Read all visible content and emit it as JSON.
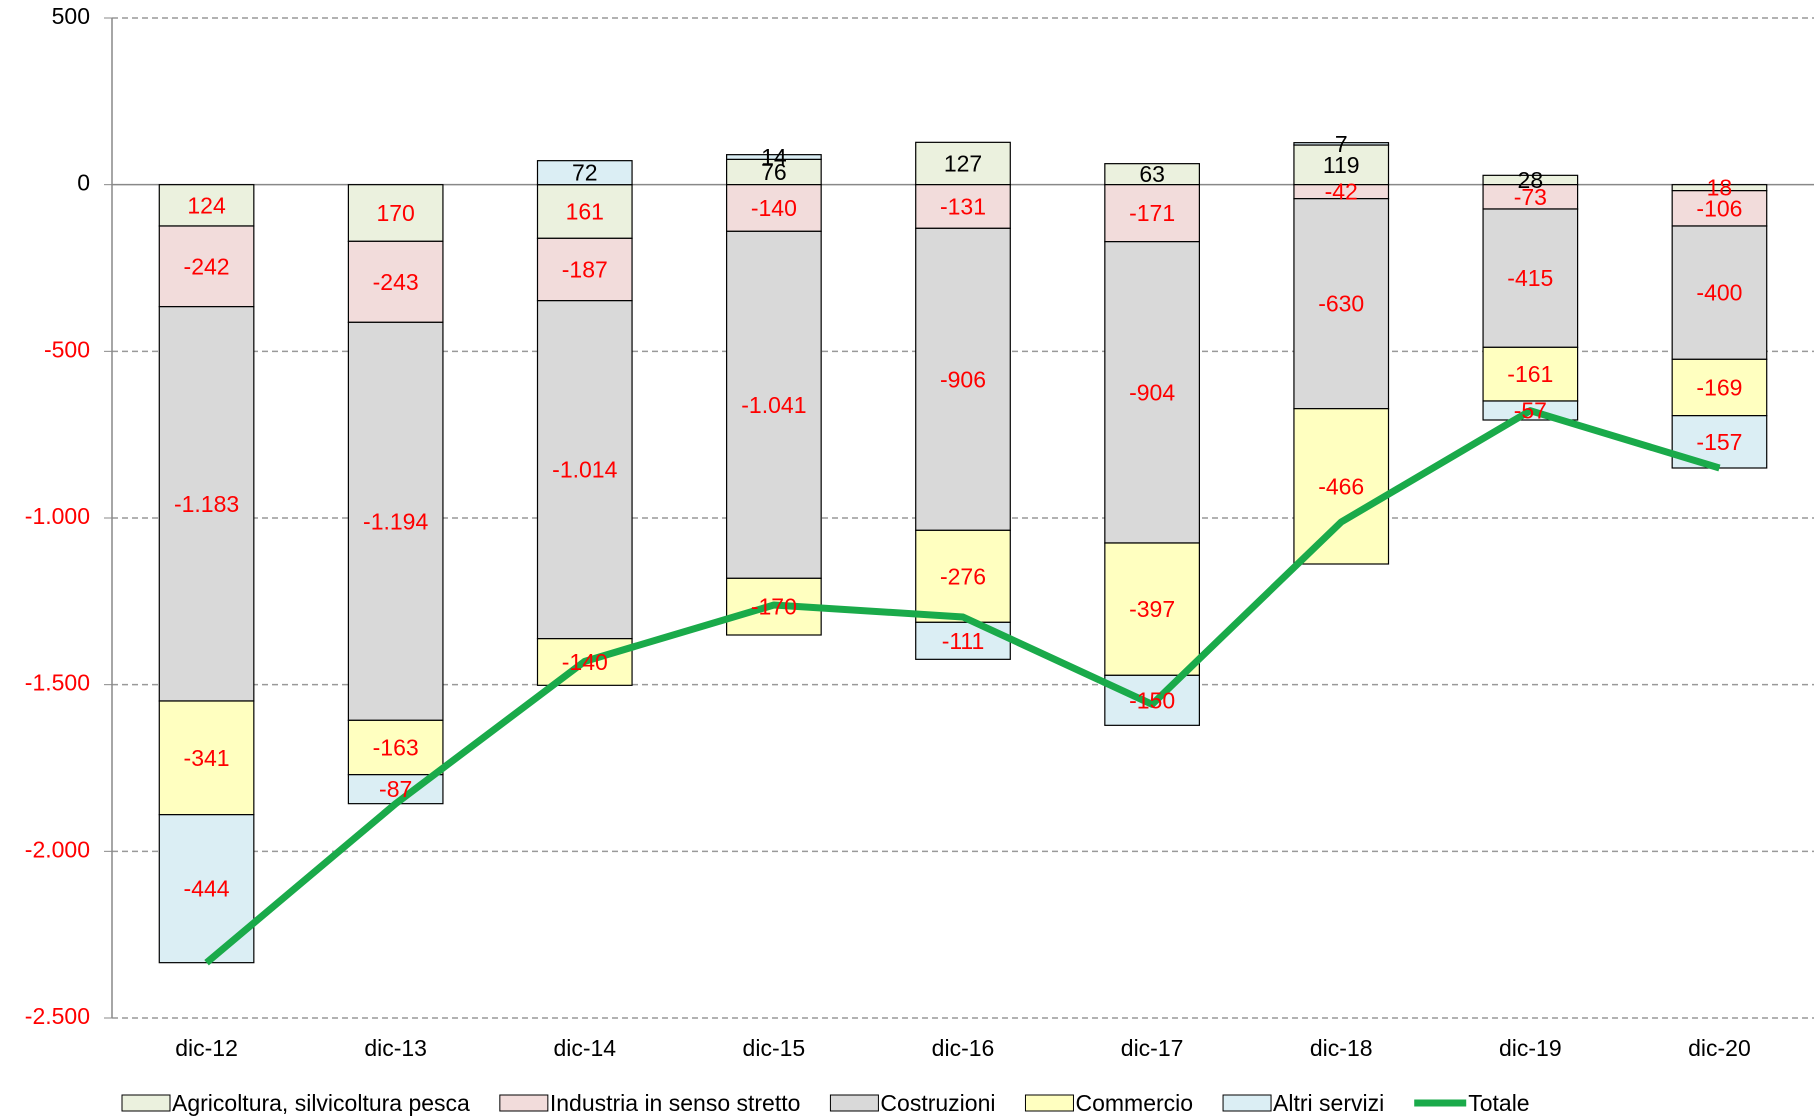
{
  "chart_data": {
    "type": "stacked-bar-line",
    "categories": [
      "dic-12",
      "dic-13",
      "dic-14",
      "dic-15",
      "dic-16",
      "dic-17",
      "dic-18",
      "dic-19",
      "dic-20"
    ],
    "series": [
      {
        "name": "Agricoltura, silvicoltura pesca",
        "color": "#ebf1de",
        "values": [
          -124,
          -170,
          -161,
          76,
          127,
          63,
          119,
          28,
          -18
        ],
        "value_labels": [
          "124",
          "170",
          "161",
          "76",
          "127",
          "63",
          "119",
          "28",
          "18"
        ]
      },
      {
        "name": "Industria in senso stretto",
        "color": "#f2dcdb",
        "values": [
          -242,
          -243,
          -187,
          -140,
          -131,
          -171,
          -42,
          -73,
          -106
        ]
      },
      {
        "name": "Costruzioni",
        "color": "#d9d9d9",
        "values": [
          -1183,
          -1194,
          -1014,
          -1041,
          -906,
          -904,
          -630,
          -415,
          -400
        ],
        "value_labels": [
          "-1.183",
          "-1.194",
          "-1.014",
          "-1.041",
          "-906",
          "-904",
          "-630",
          "-415",
          "-400"
        ]
      },
      {
        "name": "Commercio",
        "color": "#ffffc0",
        "values": [
          -341,
          -163,
          -140,
          -170,
          -276,
          -397,
          -466,
          -161,
          -169
        ]
      },
      {
        "name": "Altri servizi",
        "color": "#dbeef4",
        "values": [
          -444,
          -87,
          72,
          14,
          -111,
          -150,
          7,
          -57,
          -157
        ]
      },
      {
        "name": "Totale",
        "color": "#1aaa4a",
        "type": "line",
        "values": [
          -2334,
          -1857,
          -1430,
          -1261,
          -1297,
          -1559,
          -1012,
          -678,
          -850
        ]
      }
    ],
    "ylim": [
      -2500,
      500
    ],
    "yticks": [
      500,
      0,
      -500,
      {
        "value": -1000,
        "label": "-1.000"
      },
      {
        "value": -1500,
        "label": "-1.500"
      },
      {
        "value": -2000,
        "label": "-2.000"
      },
      {
        "value": -2500,
        "label": "-2.500"
      }
    ],
    "grid": true,
    "legend": "bottom",
    "negative_color": "#ff0000",
    "positive_color": "#000000"
  }
}
